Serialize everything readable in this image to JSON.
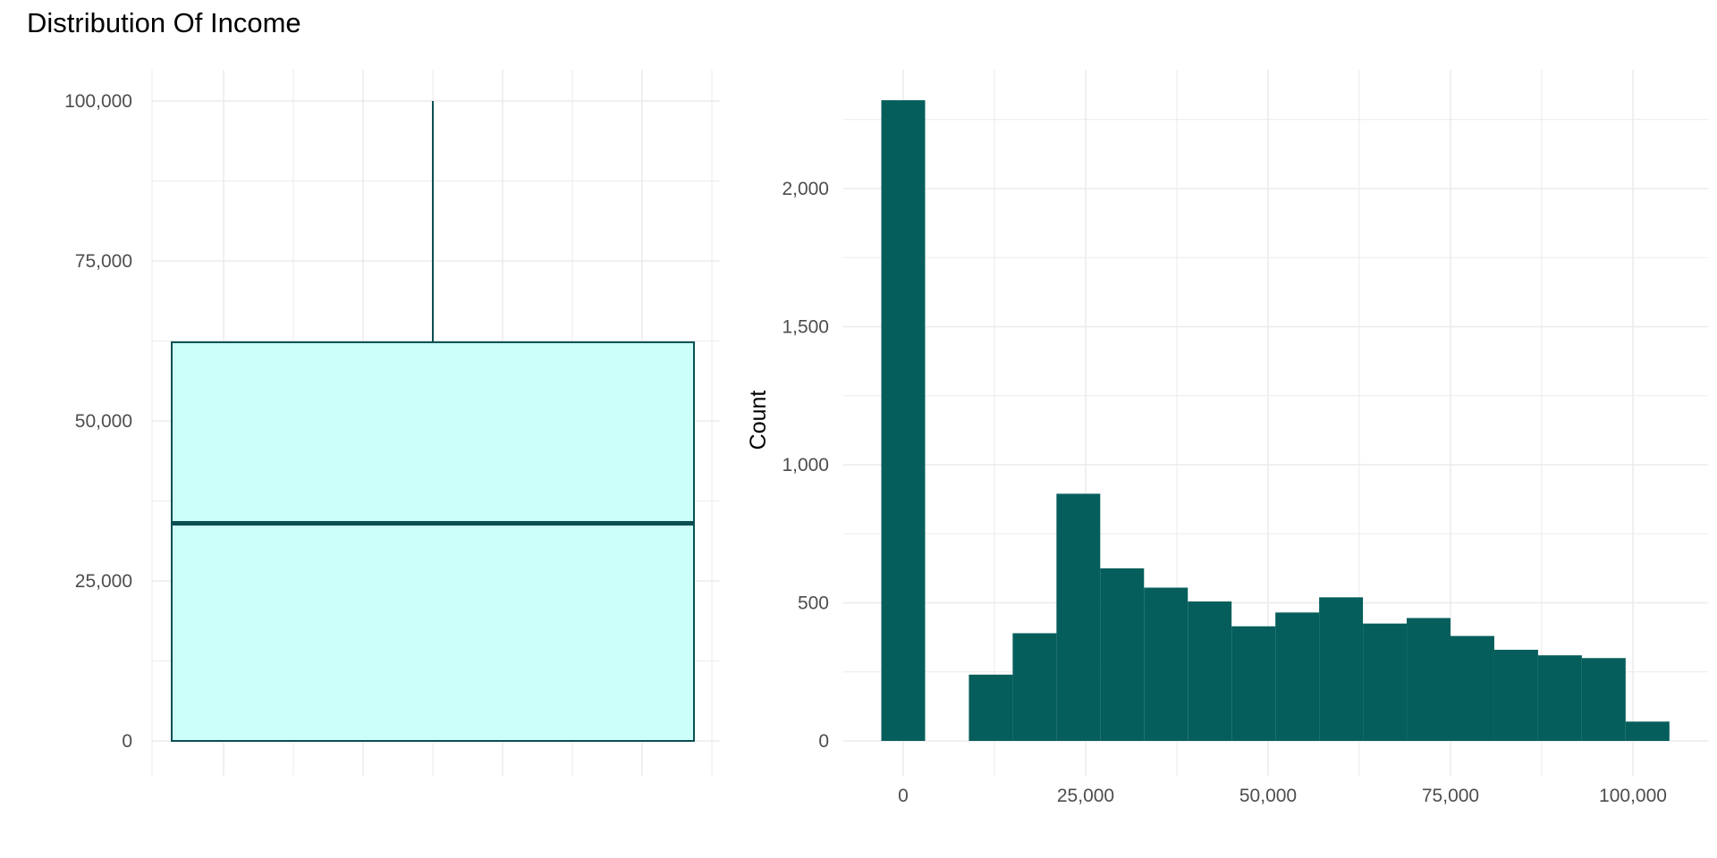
{
  "title": "Distribution Of Income",
  "colors": {
    "fill_dark": "#055e5b",
    "box_fill": "#ccfffa",
    "box_stroke": "#0b4f52",
    "grid": "#ebebeb",
    "tick_text": "#4d4d4d"
  },
  "chart_data": [
    {
      "type": "boxplot",
      "ylim": [
        0,
        100000
      ],
      "yticks": [
        0,
        25000,
        50000,
        75000,
        100000
      ],
      "ytick_labels": [
        "0",
        "25,000",
        "50,000",
        "75,000",
        "100,000"
      ],
      "box": {
        "min": 0,
        "q1": 0,
        "median": 34000,
        "q3": 62300,
        "max": 100000
      },
      "grid": true
    },
    {
      "type": "bar",
      "subtype": "histogram",
      "ylabel": "Count",
      "xlabel": "",
      "xlim": [
        -6500,
        106000
      ],
      "ylim": [
        0,
        2400
      ],
      "xticks": [
        0,
        25000,
        50000,
        75000,
        100000
      ],
      "xtick_labels": [
        "0",
        "25,000",
        "50,000",
        "75,000",
        "100,000"
      ],
      "yticks": [
        0,
        500,
        1000,
        1500,
        2000
      ],
      "ytick_labels": [
        "0",
        "500",
        "1,000",
        "1,500",
        "2,000"
      ],
      "bin_width": 6000,
      "bin_centers": [
        0,
        12000,
        18000,
        24000,
        30000,
        36000,
        42000,
        48000,
        54000,
        60000,
        66000,
        72000,
        78000,
        84000,
        90000,
        96000,
        102000
      ],
      "values": [
        2320,
        240,
        390,
        895,
        625,
        555,
        505,
        415,
        465,
        520,
        425,
        445,
        380,
        330,
        310,
        300,
        70
      ],
      "grid": true
    }
  ]
}
